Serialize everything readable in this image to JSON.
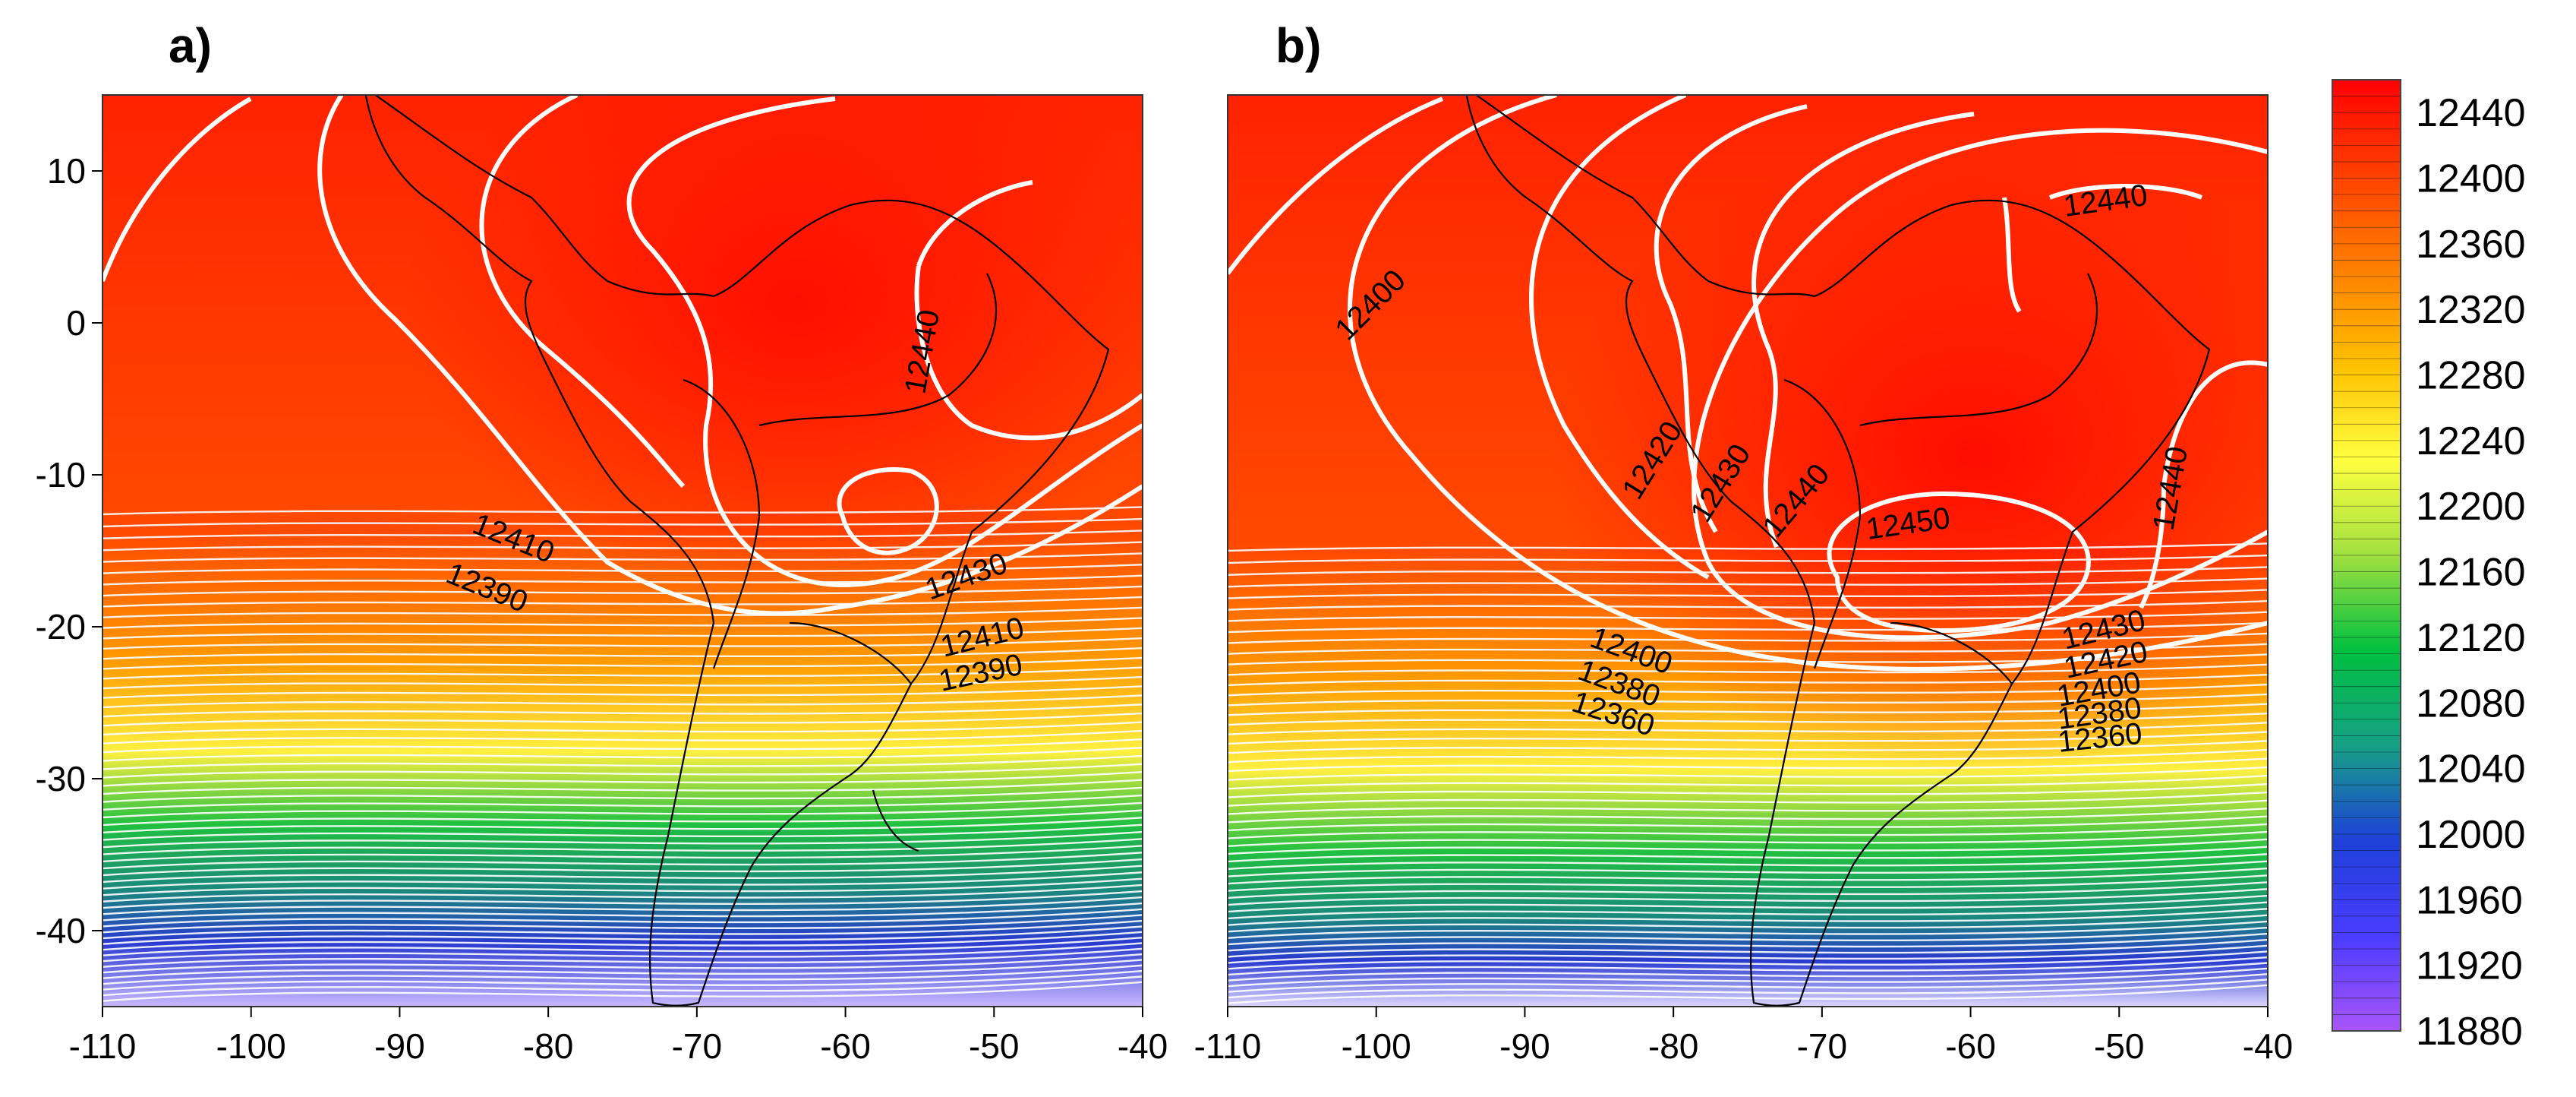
{
  "panels": [
    {
      "label": "a)",
      "y_ticks": [
        "10",
        "0",
        "-10",
        "-20",
        "-30",
        "-40"
      ],
      "x_ticks": [
        "-110",
        "-100",
        "-90",
        "-80",
        "-70",
        "-60",
        "-50",
        "-40"
      ],
      "contour_labels": [
        "12440",
        "12410",
        "12390",
        "12430",
        "12410",
        "12390"
      ]
    },
    {
      "label": "b)",
      "y_ticks": [],
      "x_ticks": [
        "-110",
        "-100",
        "-90",
        "-80",
        "-70",
        "-60",
        "-50",
        "-40"
      ],
      "contour_labels": [
        "12440",
        "12400",
        "12420",
        "12430",
        "12440",
        "12450",
        "12440",
        "12400",
        "12380",
        "12360",
        "12430",
        "12420",
        "12400",
        "12380",
        "12360"
      ]
    }
  ],
  "colorbar": {
    "labels": [
      "12440",
      "12400",
      "12360",
      "12320",
      "12280",
      "12240",
      "12200",
      "12160",
      "12120",
      "12080",
      "12040",
      "12000",
      "11960",
      "11920",
      "11880"
    ],
    "min": 11880,
    "max": 12460,
    "colors": [
      "#a855f7",
      "#3b3bff",
      "#1e40d8",
      "#16a085",
      "#00c040",
      "#a0e040",
      "#ffff40",
      "#ffc000",
      "#ff8000",
      "#ff4000",
      "#ff0000"
    ]
  },
  "map": {
    "lon_range": [
      -110,
      -40
    ],
    "lat_range": [
      -45,
      15
    ],
    "contour_color": "#ffffff",
    "coastline_color": "#000000"
  }
}
